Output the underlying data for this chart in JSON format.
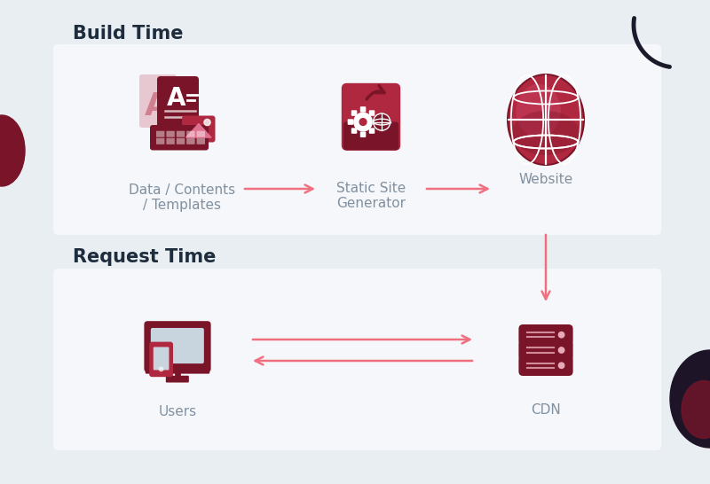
{
  "bg_color": "#e9eef3",
  "panel_color": "#f5f7fa",
  "arrow_color": "#f07080",
  "icon_dark": "#7a1428",
  "icon_mid": "#b02840",
  "icon_light": "#e8aab8",
  "icon_pink": "#d06070",
  "title_color": "#1e2d3d",
  "label_color": "#8090a0",
  "build_title": "Build Time",
  "request_title": "Request Time",
  "node1_label": "Data / Contents\n/ Templates",
  "node2_label": "Static Site\nGenerator",
  "node3_label": "Website",
  "node4_label": "Users",
  "node5_label": "CDN",
  "deco_dark": "#1a1a2a",
  "deco_red": "#7a1428"
}
